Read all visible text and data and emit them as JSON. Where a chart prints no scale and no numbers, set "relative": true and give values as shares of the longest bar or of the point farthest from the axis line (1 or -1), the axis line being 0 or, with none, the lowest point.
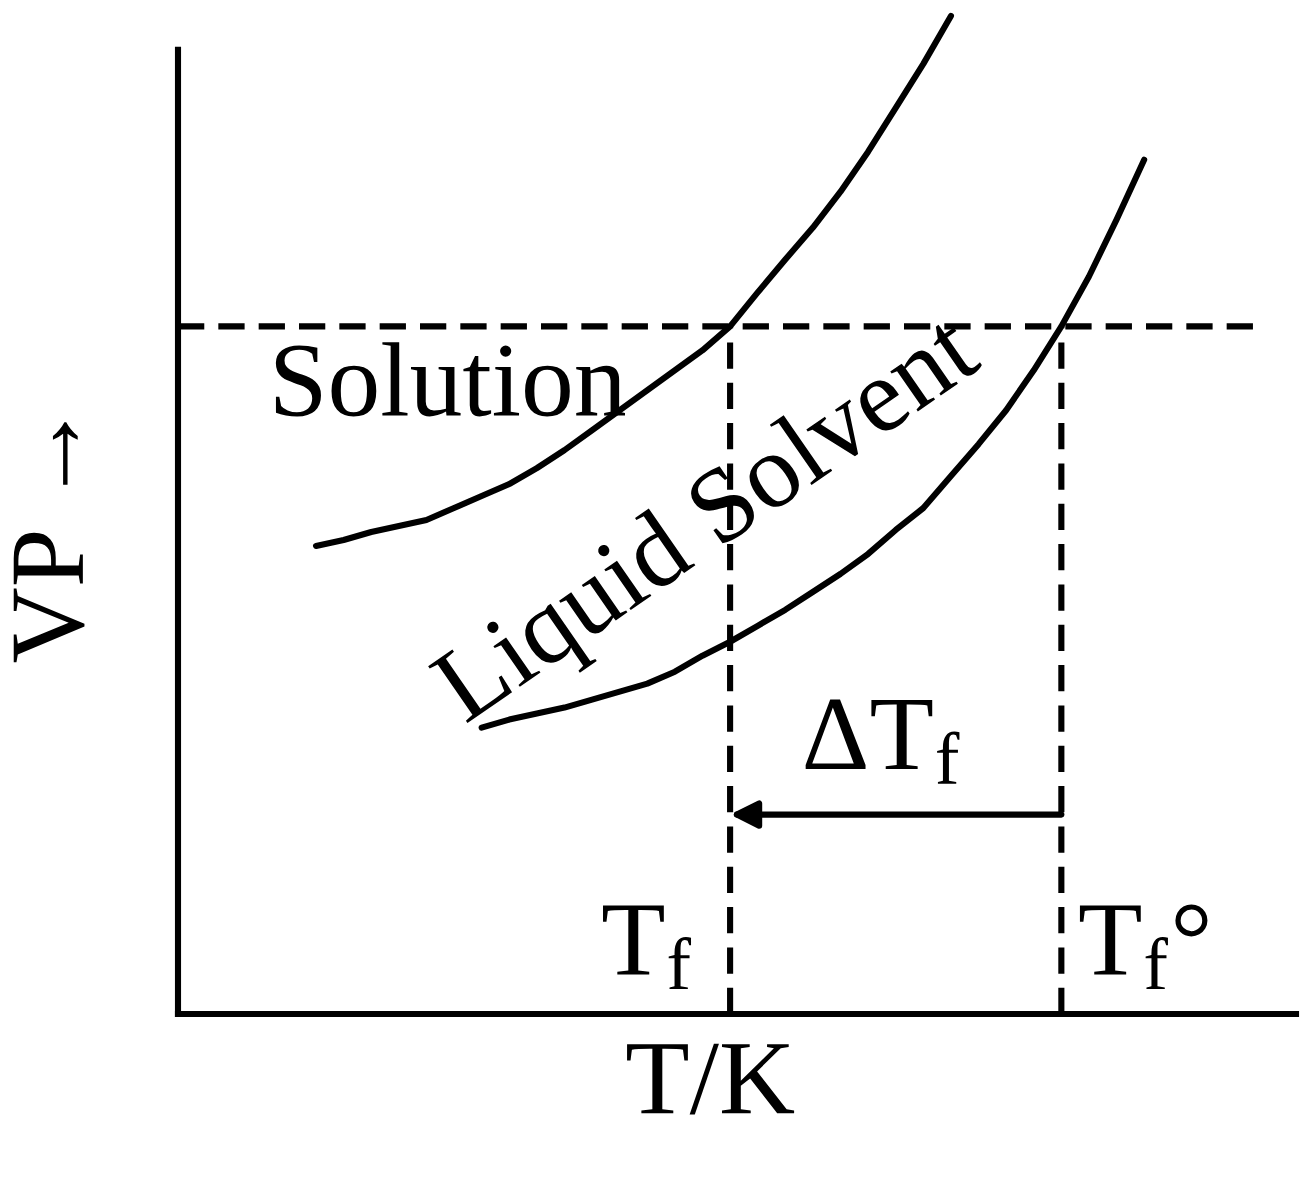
{
  "chart_data": {
    "type": "line",
    "relative": true,
    "xlabel": "T/K",
    "ylabel": "VP →",
    "categories": [
      null,
      null,
      null,
      null,
      null,
      null,
      null,
      null,
      null,
      null,
      null,
      null,
      null,
      null,
      null,
      null,
      null,
      null,
      null,
      null,
      null,
      null,
      null,
      null,
      null,
      null,
      null,
      null,
      null,
      null,
      null,
      null,
      null,
      null,
      null,
      null,
      null,
      null,
      null,
      null
    ],
    "series": [
      {
        "name": "Solution",
        "color": "#000000",
        "values": [
          null,
          null,
          null,
          null,
          0.469,
          0.475,
          0.483,
          0.489,
          0.495,
          0.507,
          0.519,
          0.531,
          0.547,
          0.565,
          0.585,
          0.605,
          0.625,
          0.645,
          0.665,
          0.689,
          0.723,
          0.756,
          0.788,
          0.824,
          0.864,
          0.908,
          0.952,
          1.0,
          null,
          null,
          null,
          null,
          null,
          null,
          null,
          null,
          null,
          null,
          null,
          null
        ]
      },
      {
        "name": "Liquid Solvent",
        "color": "#000000",
        "values": [
          null,
          null,
          null,
          null,
          null,
          null,
          null,
          null,
          null,
          null,
          0.287,
          0.295,
          0.301,
          0.307,
          0.315,
          0.323,
          0.331,
          0.343,
          0.359,
          0.373,
          0.389,
          0.405,
          0.423,
          0.441,
          0.461,
          0.485,
          0.507,
          0.539,
          0.571,
          0.605,
          0.645,
          0.689,
          0.739,
          0.796,
          0.856,
          null,
          null,
          null,
          null,
          null
        ]
      }
    ],
    "ref_lines": [
      {
        "axis": "y",
        "value": 0.689,
        "line_style": "dashed",
        "color": "#000000"
      }
    ],
    "annotations": [
      "T$_{f}$",
      "T$_{f}$°",
      "ΔT$_{f}$"
    ]
  }
}
